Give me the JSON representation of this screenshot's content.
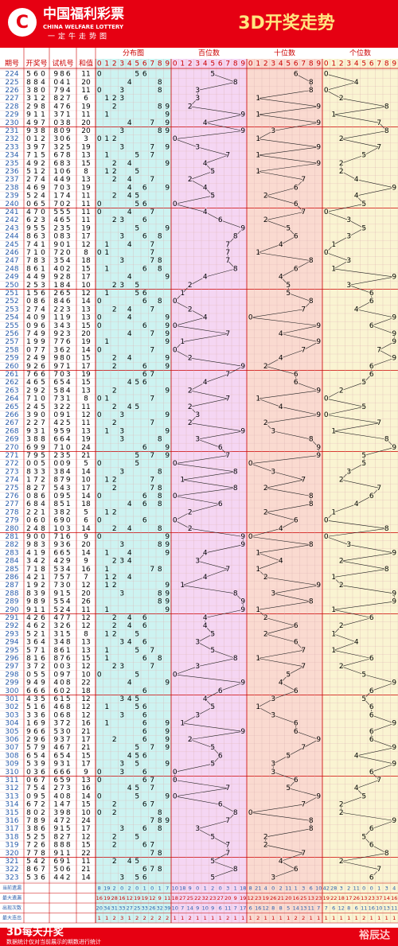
{
  "header": {
    "brand": "中国福利彩票",
    "brand_en": "CHINA WELFARE LOTTERY",
    "slogan": "一定牛走势图",
    "title": "3D开奖走势"
  },
  "columns": [
    "期号",
    "开奖号",
    "试机号",
    "和值",
    "分布图",
    "百位数",
    "十位数",
    "个位数"
  ],
  "digit_headers": [
    0,
    1,
    2,
    3,
    4,
    5,
    6,
    7,
    8,
    9
  ],
  "rows": [
    {
      "period": 224,
      "draw": [
        5,
        6,
        0
      ],
      "test": "986",
      "sum": 11
    },
    {
      "period": 225,
      "draw": [
        8,
        8,
        4
      ],
      "test": "041",
      "sum": 20
    },
    {
      "period": 226,
      "draw": [
        3,
        8,
        0
      ],
      "test": "794",
      "sum": 11
    },
    {
      "period": 227,
      "draw": [
        3,
        1,
        2
      ],
      "test": "827",
      "sum": 6
    },
    {
      "period": 228,
      "draw": [
        2,
        9,
        8
      ],
      "test": "476",
      "sum": 19
    },
    {
      "period": 229,
      "draw": [
        9,
        1,
        1
      ],
      "test": "371",
      "sum": 11
    },
    {
      "period": 230,
      "draw": [
        4,
        9,
        7
      ],
      "test": "038",
      "sum": 20
    },
    {
      "period": 231,
      "draw": [
        9,
        3,
        8
      ],
      "test": "809",
      "sum": 20
    },
    {
      "period": 232,
      "draw": [
        0,
        1,
        2
      ],
      "test": "306",
      "sum": 3
    },
    {
      "period": 233,
      "draw": [
        3,
        9,
        7
      ],
      "test": "325",
      "sum": 19
    },
    {
      "period": 234,
      "draw": [
        7,
        1,
        5
      ],
      "test": "678",
      "sum": 13
    },
    {
      "period": 235,
      "draw": [
        4,
        9,
        2
      ],
      "test": "683",
      "sum": 15
    },
    {
      "period": 236,
      "draw": [
        5,
        1,
        2
      ],
      "test": "106",
      "sum": 8
    },
    {
      "period": 237,
      "draw": [
        2,
        7,
        4
      ],
      "test": "449",
      "sum": 13
    },
    {
      "period": 238,
      "draw": [
        4,
        6,
        9
      ],
      "test": "703",
      "sum": 19
    },
    {
      "period": 239,
      "draw": [
        5,
        2,
        4
      ],
      "test": "174",
      "sum": 11
    },
    {
      "period": 240,
      "draw": [
        0,
        6,
        5
      ],
      "test": "702",
      "sum": 11
    },
    {
      "period": 241,
      "draw": [
        4,
        7,
        0
      ],
      "test": "555",
      "sum": 11
    },
    {
      "period": 242,
      "draw": [
        6,
        2,
        3
      ],
      "test": "465",
      "sum": 11
    },
    {
      "period": 243,
      "draw": [
        9,
        5,
        5
      ],
      "test": "235",
      "sum": 19
    },
    {
      "period": 244,
      "draw": [
        8,
        6,
        3
      ],
      "test": "083",
      "sum": 17
    },
    {
      "period": 245,
      "draw": [
        7,
        4,
        1
      ],
      "test": "901",
      "sum": 12
    },
    {
      "period": 246,
      "draw": [
        7,
        1,
        0
      ],
      "test": "720",
      "sum": 8
    },
    {
      "period": 247,
      "draw": [
        7,
        8,
        3
      ],
      "test": "354",
      "sum": 18
    },
    {
      "period": 248,
      "draw": [
        8,
        6,
        1
      ],
      "test": "402",
      "sum": 15
    },
    {
      "period": 249,
      "draw": [
        4,
        4,
        9
      ],
      "test": "928",
      "sum": 17
    },
    {
      "period": 250,
      "draw": [
        2,
        5,
        3
      ],
      "test": "184",
      "sum": 10
    },
    {
      "period": 251,
      "draw": [
        1,
        5,
        6
      ],
      "test": "265",
      "sum": 12
    },
    {
      "period": 252,
      "draw": [
        0,
        8,
        6
      ],
      "test": "846",
      "sum": 14
    },
    {
      "period": 253,
      "draw": [
        2,
        7,
        4
      ],
      "test": "223",
      "sum": 13
    },
    {
      "period": 254,
      "draw": [
        4,
        0,
        9
      ],
      "test": "119",
      "sum": 13
    },
    {
      "period": 255,
      "draw": [
        0,
        9,
        6
      ],
      "test": "343",
      "sum": 15
    },
    {
      "period": 256,
      "draw": [
        7,
        4,
        9
      ],
      "test": "923",
      "sum": 20
    },
    {
      "period": 257,
      "draw": [
        1,
        9,
        9
      ],
      "test": "776",
      "sum": 19
    },
    {
      "period": 258,
      "draw": [
        0,
        7,
        7
      ],
      "test": "362",
      "sum": 14
    },
    {
      "period": 259,
      "draw": [
        2,
        4,
        9
      ],
      "test": "980",
      "sum": 15
    },
    {
      "period": 260,
      "draw": [
        9,
        2,
        6
      ],
      "test": "971",
      "sum": 17
    },
    {
      "period": 261,
      "draw": [
        7,
        6,
        6
      ],
      "test": "703",
      "sum": 19
    },
    {
      "period": 262,
      "draw": [
        4,
        6,
        5
      ],
      "test": "654",
      "sum": 15
    },
    {
      "period": 263,
      "draw": [
        2,
        9,
        2
      ],
      "test": "584",
      "sum": 13
    },
    {
      "period": 264,
      "draw": [
        7,
        1,
        0
      ],
      "test": "731",
      "sum": 8
    },
    {
      "period": 265,
      "draw": [
        2,
        4,
        5
      ],
      "test": "322",
      "sum": 11
    },
    {
      "period": 266,
      "draw": [
        3,
        9,
        0
      ],
      "test": "091",
      "sum": 12
    },
    {
      "period": 267,
      "draw": [
        2,
        2,
        7
      ],
      "test": "425",
      "sum": 11
    },
    {
      "period": 268,
      "draw": [
        9,
        3,
        1
      ],
      "test": "959",
      "sum": 13
    },
    {
      "period": 269,
      "draw": [
        3,
        8,
        8
      ],
      "test": "664",
      "sum": 19
    },
    {
      "period": 270,
      "draw": [
        6,
        9,
        9
      ],
      "test": "710",
      "sum": 24
    },
    {
      "period": 271,
      "draw": [
        7,
        9,
        5
      ],
      "test": "235",
      "sum": 21
    },
    {
      "period": 272,
      "draw": [
        0,
        0,
        5
      ],
      "test": "009",
      "sum": 5
    },
    {
      "period": 273,
      "draw": [
        8,
        3,
        3
      ],
      "test": "384",
      "sum": 14
    },
    {
      "period": 274,
      "draw": [
        1,
        7,
        2
      ],
      "test": "879",
      "sum": 10
    },
    {
      "period": 275,
      "draw": [
        8,
        2,
        7
      ],
      "test": "543",
      "sum": 17
    },
    {
      "period": 276,
      "draw": [
        0,
        8,
        6
      ],
      "test": "095",
      "sum": 14
    },
    {
      "period": 277,
      "draw": [
        6,
        8,
        4
      ],
      "test": "851",
      "sum": 18
    },
    {
      "period": 278,
      "draw": [
        2,
        2,
        1
      ],
      "test": "382",
      "sum": 5
    },
    {
      "period": 279,
      "draw": [
        0,
        6,
        0
      ],
      "test": "690",
      "sum": 6
    },
    {
      "period": 280,
      "draw": [
        2,
        4,
        8
      ],
      "test": "103",
      "sum": 14
    },
    {
      "period": 281,
      "draw": [
        9,
        0,
        0
      ],
      "test": "716",
      "sum": 9
    },
    {
      "period": 282,
      "draw": [
        9,
        8,
        3
      ],
      "test": "936",
      "sum": 20
    },
    {
      "period": 283,
      "draw": [
        4,
        1,
        9
      ],
      "test": "665",
      "sum": 14
    },
    {
      "period": 284,
      "draw": [
        3,
        4,
        2
      ],
      "test": "429",
      "sum": 9
    },
    {
      "period": 285,
      "draw": [
        7,
        1,
        8
      ],
      "test": "534",
      "sum": 16
    },
    {
      "period": 286,
      "draw": [
        4,
        2,
        1
      ],
      "test": "757",
      "sum": 7
    },
    {
      "period": 287,
      "draw": [
        1,
        9,
        2
      ],
      "test": "730",
      "sum": 12
    },
    {
      "period": 288,
      "draw": [
        8,
        3,
        9
      ],
      "test": "915",
      "sum": 20
    },
    {
      "period": 289,
      "draw": [
        9,
        8,
        9
      ],
      "test": "554",
      "sum": 26
    },
    {
      "period": 290,
      "draw": [
        9,
        1,
        1
      ],
      "test": "524",
      "sum": 11
    },
    {
      "period": 291,
      "draw": [
        4,
        2,
        6
      ],
      "test": "477",
      "sum": 12
    },
    {
      "period": 292,
      "draw": [
        4,
        6,
        2
      ],
      "test": "326",
      "sum": 12
    },
    {
      "period": 293,
      "draw": [
        5,
        2,
        1
      ],
      "test": "315",
      "sum": 8
    },
    {
      "period": 294,
      "draw": [
        3,
        6,
        4
      ],
      "test": "348",
      "sum": 13
    },
    {
      "period": 295,
      "draw": [
        5,
        7,
        1
      ],
      "test": "861",
      "sum": 13
    },
    {
      "period": 296,
      "draw": [
        8,
        1,
        6
      ],
      "test": "876",
      "sum": 15
    },
    {
      "period": 297,
      "draw": [
        3,
        7,
        2
      ],
      "test": "003",
      "sum": 12
    },
    {
      "period": 298,
      "draw": [
        0,
        5,
        5
      ],
      "test": "097",
      "sum": 10
    },
    {
      "period": 299,
      "draw": [
        9,
        4,
        9
      ],
      "test": "408",
      "sum": 22
    },
    {
      "period": 300,
      "draw": [
        6,
        6,
        6
      ],
      "test": "602",
      "sum": 18
    },
    {
      "period": 301,
      "draw": [
        4,
        3,
        5
      ],
      "test": "615",
      "sum": 12
    },
    {
      "period": 302,
      "draw": [
        5,
        1,
        6
      ],
      "test": "468",
      "sum": 12
    },
    {
      "period": 303,
      "draw": [
        3,
        3,
        6
      ],
      "test": "068",
      "sum": 12
    },
    {
      "period": 304,
      "draw": [
        1,
        6,
        9
      ],
      "test": "372",
      "sum": 16
    },
    {
      "period": 305,
      "draw": [
        9,
        6,
        6
      ],
      "test": "530",
      "sum": 21
    },
    {
      "period": 306,
      "draw": [
        2,
        9,
        6
      ],
      "test": "937",
      "sum": 17
    },
    {
      "period": 307,
      "draw": [
        5,
        7,
        9
      ],
      "test": "467",
      "sum": 21
    },
    {
      "period": 308,
      "draw": [
        6,
        5,
        4
      ],
      "test": "654",
      "sum": 15
    },
    {
      "period": 309,
      "draw": [
        5,
        3,
        9
      ],
      "test": "931",
      "sum": 17
    },
    {
      "period": 310,
      "draw": [
        0,
        3,
        6
      ],
      "test": "666",
      "sum": 9
    },
    {
      "period": 311,
      "draw": [
        0,
        6,
        7
      ],
      "test": "659",
      "sum": 13
    },
    {
      "period": 312,
      "draw": [
        7,
        5,
        4
      ],
      "test": "273",
      "sum": 16
    },
    {
      "period": 313,
      "draw": [
        0,
        9,
        5
      ],
      "test": "408",
      "sum": 14
    },
    {
      "period": 314,
      "draw": [
        6,
        7,
        2
      ],
      "test": "147",
      "sum": 15
    },
    {
      "period": 315,
      "draw": [
        8,
        0,
        2
      ],
      "test": "398",
      "sum": 10
    },
    {
      "period": 316,
      "draw": [
        7,
        8,
        9
      ],
      "test": "472",
      "sum": 24
    },
    {
      "period": 317,
      "draw": [
        3,
        8,
        6
      ],
      "test": "915",
      "sum": 17
    },
    {
      "period": 318,
      "draw": [
        5,
        2,
        5
      ],
      "test": "827",
      "sum": 12
    },
    {
      "period": 319,
      "draw": [
        7,
        2,
        6
      ],
      "test": "888",
      "sum": 15
    },
    {
      "period": 320,
      "draw": [
        7,
        7,
        8
      ],
      "test": "911",
      "sum": 22
    },
    {
      "period": 321,
      "draw": [
        5,
        4,
        2
      ],
      "test": "691",
      "sum": 11
    },
    {
      "period": 322,
      "draw": [
        8,
        6,
        7
      ],
      "test": "506",
      "sum": 21
    },
    {
      "period": 323,
      "draw": [
        5,
        3,
        6
      ],
      "test": "442",
      "sum": 14
    }
  ],
  "stats": {
    "labels": [
      "当前遗漏",
      "最大遗漏",
      "出现次数",
      "最大连出"
    ],
    "values": [
      [
        8,
        19,
        2,
        0,
        2,
        0,
        1,
        0,
        1,
        7,
        10,
        18,
        9,
        0,
        1,
        2,
        0,
        3,
        1,
        18,
        8,
        21,
        4,
        0,
        2,
        11,
        1,
        3,
        6,
        10,
        42,
        28,
        3,
        2,
        11,
        0,
        0,
        1,
        3,
        4
      ],
      [
        16,
        19,
        28,
        16,
        12,
        19,
        19,
        12,
        9,
        11,
        18,
        27,
        25,
        22,
        32,
        23,
        27,
        20,
        9,
        19,
        12,
        23,
        19,
        26,
        21,
        20,
        16,
        25,
        13,
        23,
        19,
        22,
        18,
        17,
        26,
        13,
        23,
        37,
        14,
        16
      ],
      [
        20,
        34,
        31,
        33,
        27,
        25,
        33,
        26,
        32,
        39,
        10,
        7,
        14,
        9,
        10,
        9,
        6,
        11,
        7,
        17,
        6,
        16,
        12,
        8,
        8,
        5,
        14,
        13,
        11,
        7,
        7,
        6,
        12,
        8,
        6,
        11,
        16,
        10,
        13,
        11
      ],
      [
        1,
        1,
        2,
        3,
        1,
        2,
        2,
        2,
        2,
        2,
        1,
        1,
        2,
        1,
        1,
        1,
        1,
        2,
        1,
        1,
        1,
        2,
        1,
        1,
        1,
        1,
        2,
        2,
        1,
        1,
        1,
        1,
        1,
        1,
        1,
        2,
        1,
        1,
        1,
        1
      ]
    ]
  },
  "footer": {
    "title": "3D每天开奖",
    "note": "数据统计仅对当前展示的期数进行统计",
    "brand": "裕辰达"
  }
}
